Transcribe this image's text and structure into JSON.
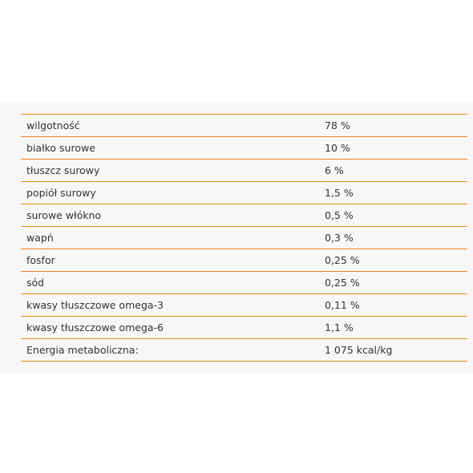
{
  "nutrition_table": {
    "rows": [
      {
        "label": "wilgotność",
        "value": "78 %"
      },
      {
        "label": "białko surowe",
        "value": "10 %"
      },
      {
        "label": "tłuszcz surowy",
        "value": "6 %"
      },
      {
        "label": "popiół surowy",
        "value": "1,5 %"
      },
      {
        "label": "surowe włókno",
        "value": "0,5 %"
      },
      {
        "label": "wapń",
        "value": "0,3 %"
      },
      {
        "label": "fosfor",
        "value": "0,25 %"
      },
      {
        "label": "sód",
        "value": "0,25 %"
      },
      {
        "label": "kwasy tłuszczowe omega-3",
        "value": "0,11 %"
      },
      {
        "label": "kwasy tłuszczowe omega-6",
        "value": "1,1 %"
      },
      {
        "label": "Energia metaboliczna:",
        "value": "1 075 kcal/kg"
      }
    ]
  },
  "colors": {
    "divider": "#e08a1e",
    "panel_background": "#f7f7f7",
    "text": "#333333"
  }
}
